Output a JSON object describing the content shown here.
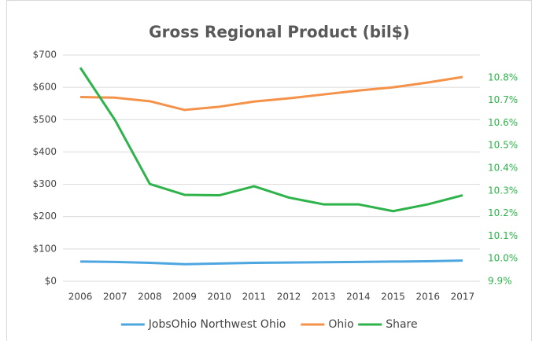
{
  "chart_data": {
    "type": "line",
    "title": "Gross Regional Product (bil$)",
    "categories": [
      "2006",
      "2007",
      "2008",
      "2009",
      "2010",
      "2011",
      "2012",
      "2013",
      "2014",
      "2015",
      "2016",
      "2017"
    ],
    "series": [
      {
        "name": "JobsOhio Northwest Ohio",
        "color": "#4da6e0",
        "values": [
          61,
          60,
          57,
          53,
          55,
          57,
          58,
          59,
          60,
          61,
          62,
          64
        ]
      },
      {
        "name": "Ohio",
        "color": "#f4924a",
        "values": [
          570,
          568,
          557,
          530,
          540,
          556,
          566,
          578,
          590,
          600,
          615,
          632
        ]
      },
      {
        "name": "Share",
        "color": "#2db34a",
        "axis": "y2",
        "values": [
          10.844,
          10.612,
          10.33,
          10.282,
          10.28,
          10.32,
          10.27,
          10.24,
          10.24,
          10.21,
          10.24,
          10.28
        ]
      }
    ],
    "ylim": [
      0,
      700
    ],
    "yticks": [
      {
        "value": 0,
        "label": "$0"
      },
      {
        "value": 100,
        "label": "$100"
      },
      {
        "value": 200,
        "label": "$200"
      },
      {
        "value": 300,
        "label": "$300"
      },
      {
        "value": 400,
        "label": "$400"
      },
      {
        "value": 500,
        "label": "$500"
      },
      {
        "value": 600,
        "label": "$600"
      },
      {
        "value": 700,
        "label": "$700"
      }
    ],
    "y2lim": [
      9.9,
      10.9
    ],
    "y2ticks": [
      {
        "value": 9.9,
        "label": "9.9%"
      },
      {
        "value": 10.0,
        "label": "10.0%"
      },
      {
        "value": 10.1,
        "label": "10.1%"
      },
      {
        "value": 10.2,
        "label": "10.2%"
      },
      {
        "value": 10.3,
        "label": "10.3%"
      },
      {
        "value": 10.4,
        "label": "10.4%"
      },
      {
        "value": 10.5,
        "label": "10.5%"
      },
      {
        "value": 10.6,
        "label": "10.6%"
      },
      {
        "value": 10.7,
        "label": "10.7%"
      },
      {
        "value": 10.8,
        "label": "10.8%"
      }
    ],
    "grid": true,
    "legend": "bottom"
  }
}
